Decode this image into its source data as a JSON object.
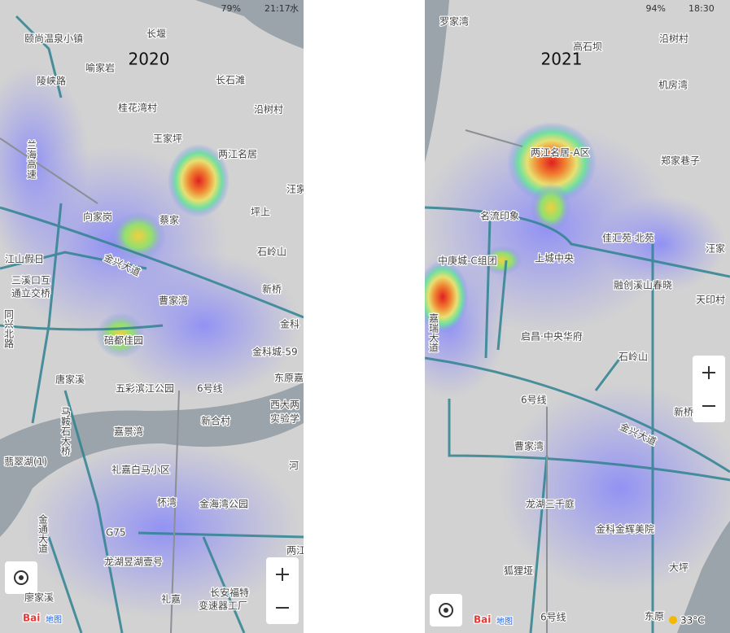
{
  "panels": [
    {
      "year": "2020",
      "status": {
        "battery": "79%",
        "time": "21:17",
        "extra": "水"
      },
      "logo": {
        "brand": "Bai",
        "suffix": "地图"
      },
      "labels": [
        "颐尚温泉小镇",
        "长堰",
        "喻家岩",
        "陵峡路",
        "长石滩",
        "桂花湾村",
        "沿树村",
        "王家坪",
        "两江名居",
        "兰海高速",
        "汪家",
        "向家岗",
        "蔡家",
        "坪上",
        "石岭山",
        "江山假日",
        "金兴大道",
        "三溪口互",
        "通立交桥",
        "新桥",
        "曹家湾",
        "同兴北路",
        "金科",
        "碚都佳园",
        "金科城-59",
        "唐家溪",
        "东原嘉",
        "五彩滨江公园",
        "6号线",
        "西大两",
        "实验学",
        "马鞍石大桥",
        "新合村",
        "嘉景湾",
        "翡翠湖(1)",
        "礼嘉白马小区",
        "河",
        "怀湾",
        "金海湾公园",
        "金通大道",
        "G75",
        "两江",
        "龙湖昱湖壹号",
        "长安福特",
        "变速器工厂",
        "礼嘉",
        "廖家溪"
      ]
    },
    {
      "year": "2021",
      "status": {
        "battery": "94%",
        "time": "18:30"
      },
      "logo": {
        "brand": "Bai",
        "suffix": "地图"
      },
      "temperature": "33°C",
      "labels": [
        "罗家湾",
        "高石坝",
        "沿树村",
        "机房湾",
        "两江名居-A区",
        "郑家巷子",
        "名流印象",
        "佳汇苑·北苑",
        "汪家",
        "中庚城-C组团",
        "上城中央",
        "融创溪山春晓",
        "天印村",
        "嘉瑞大道",
        "启昌·中央华府",
        "石岭山",
        "6号线",
        "新桥",
        "金兴大道",
        "曹家湾",
        "龙湖三千庭",
        "金科金辉美院",
        "狐狸垭",
        "大坪",
        "6号线",
        "东原"
      ]
    }
  ]
}
